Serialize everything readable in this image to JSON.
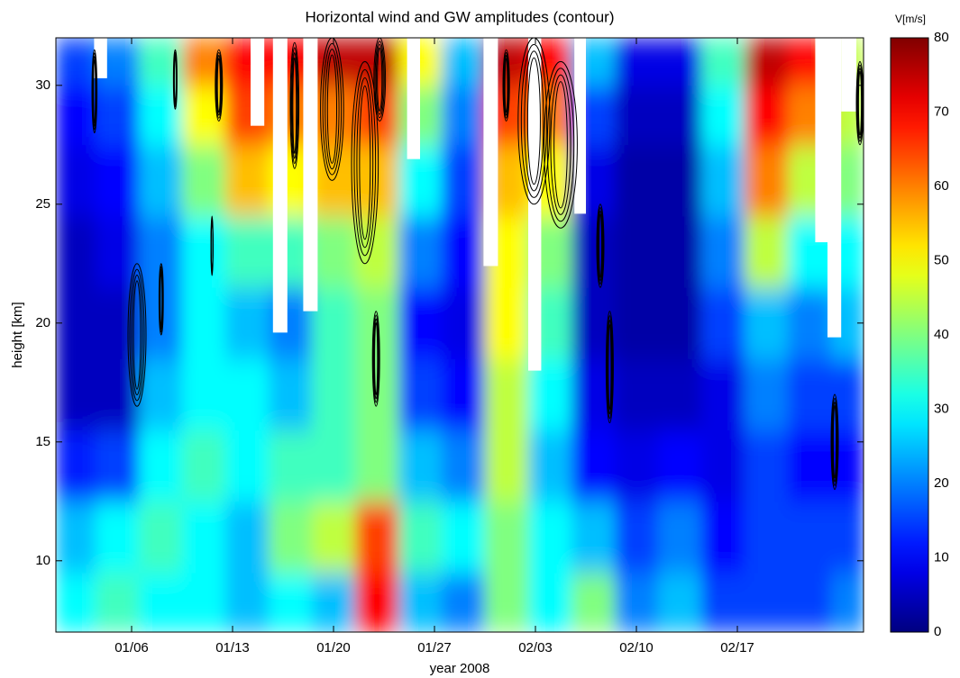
{
  "chart_data": {
    "type": "heatmap",
    "title": "Horizontal wind and GW amplitudes (contour)",
    "xlabel": "year 2008",
    "ylabel": "height [km]",
    "colorbar_label": "V[m/s]",
    "colormap": "jet",
    "x": [
      2,
      5,
      8,
      11,
      14,
      17,
      20,
      23,
      26,
      29,
      32,
      35,
      38,
      41,
      44,
      47,
      50,
      53,
      56
    ],
    "y": [
      8,
      11,
      14,
      17,
      20,
      23,
      26,
      29,
      31
    ],
    "z": [
      [
        30,
        35,
        30,
        30,
        25,
        30,
        25,
        70,
        25,
        20,
        40,
        30,
        40,
        20,
        25,
        15,
        15,
        15,
        20
      ],
      [
        25,
        30,
        35,
        30,
        25,
        40,
        45,
        65,
        35,
        30,
        40,
        30,
        25,
        15,
        20,
        10,
        15,
        15,
        15
      ],
      [
        12,
        15,
        30,
        35,
        30,
        35,
        35,
        40,
        25,
        20,
        45,
        25,
        10,
        8,
        10,
        8,
        15,
        10,
        10
      ],
      [
        5,
        5,
        25,
        30,
        30,
        25,
        35,
        40,
        15,
        10,
        45,
        30,
        8,
        5,
        5,
        8,
        20,
        15,
        15
      ],
      [
        5,
        5,
        20,
        30,
        25,
        20,
        35,
        40,
        10,
        8,
        50,
        35,
        5,
        3,
        3,
        15,
        25,
        20,
        25
      ],
      [
        5,
        8,
        20,
        30,
        35,
        35,
        40,
        45,
        20,
        10,
        50,
        40,
        5,
        3,
        3,
        20,
        45,
        30,
        30
      ],
      [
        8,
        10,
        25,
        40,
        55,
        50,
        55,
        55,
        30,
        15,
        55,
        50,
        8,
        3,
        3,
        25,
        60,
        45,
        40
      ],
      [
        10,
        15,
        30,
        50,
        65,
        60,
        60,
        65,
        40,
        20,
        65,
        60,
        15,
        5,
        5,
        30,
        70,
        60,
        45
      ],
      [
        15,
        20,
        35,
        60,
        70,
        70,
        75,
        75,
        50,
        25,
        75,
        70,
        25,
        8,
        8,
        35,
        75,
        70,
        45
      ]
    ],
    "xlim": [
      0.75,
      56.75
    ],
    "ylim": [
      7,
      32
    ],
    "xticks": [
      {
        "value": 6,
        "label": "01/06"
      },
      {
        "value": 13,
        "label": "01/13"
      },
      {
        "value": 20,
        "label": "01/20"
      },
      {
        "value": 27,
        "label": "01/27"
      },
      {
        "value": 34,
        "label": "02/03"
      },
      {
        "value": 41,
        "label": "02/10"
      },
      {
        "value": 48,
        "label": "02/17"
      }
    ],
    "yticks": [
      10,
      15,
      20,
      25,
      30
    ],
    "clim": [
      0,
      80
    ],
    "cticks": [
      0,
      10,
      20,
      30,
      40,
      50,
      60,
      70,
      80
    ],
    "no_data": [
      {
        "x0": 3.4,
        "x1": 4.3,
        "y0": 30.3
      },
      {
        "x0": 14.25,
        "x1": 15.2,
        "y0": 28.3
      },
      {
        "x0": 15.8,
        "x1": 16.8,
        "y0": 19.6
      },
      {
        "x0": 17.9,
        "x1": 18.9,
        "y0": 20.5
      },
      {
        "x0": 25.1,
        "x1": 26.0,
        "y0": 26.9
      },
      {
        "x0": 30.4,
        "x1": 31.4,
        "y0": 22.4
      },
      {
        "x0": 33.5,
        "x1": 34.4,
        "y0": 18
      },
      {
        "x0": 36.7,
        "x1": 37.5,
        "y0": 24.6
      },
      {
        "x0": 53.4,
        "x1": 54.25,
        "y0": 23.4
      },
      {
        "x0": 54.25,
        "x1": 55.2,
        "y0": 19.4
      },
      {
        "x0": 55.2,
        "x1": 56.25,
        "y0": 28.9
      }
    ],
    "contours": [
      {
        "x0": 3.25,
        "x1": 3.6,
        "y0": 28,
        "y1": 31.5
      },
      {
        "x0": 5.75,
        "x1": 7.0,
        "y0": 16.5,
        "y1": 22.5
      },
      {
        "x0": 7.9,
        "x1": 8.2,
        "y0": 19.5,
        "y1": 22.5
      },
      {
        "x0": 8.9,
        "x1": 9.15,
        "y0": 29,
        "y1": 31.5
      },
      {
        "x0": 11.5,
        "x1": 11.65,
        "y0": 22,
        "y1": 24.5
      },
      {
        "x0": 11.8,
        "x1": 12.3,
        "y0": 28.5,
        "y1": 31.5
      },
      {
        "x0": 17.0,
        "x1": 17.6,
        "y0": 26.5,
        "y1": 31.8
      },
      {
        "x0": 19.1,
        "x1": 20.7,
        "y0": 26,
        "y1": 32
      },
      {
        "x0": 21.25,
        "x1": 23.1,
        "y0": 22.5,
        "y1": 31
      },
      {
        "x0": 22.8,
        "x1": 23.6,
        "y0": 28.5,
        "y1": 32
      },
      {
        "x0": 22.7,
        "x1": 23.2,
        "y0": 16.5,
        "y1": 20.5
      },
      {
        "x0": 31.75,
        "x1": 32.2,
        "y0": 28.5,
        "y1": 31.5
      },
      {
        "x0": 32.8,
        "x1": 35.0,
        "y0": 25,
        "y1": 32
      },
      {
        "x0": 34.6,
        "x1": 36.9,
        "y0": 24,
        "y1": 31
      },
      {
        "x0": 38.25,
        "x1": 38.75,
        "y0": 21.5,
        "y1": 25
      },
      {
        "x0": 38.9,
        "x1": 39.4,
        "y0": 15.8,
        "y1": 20.5
      },
      {
        "x0": 54.5,
        "x1": 55.0,
        "y0": 13,
        "y1": 17
      },
      {
        "x0": 56.25,
        "x1": 56.75,
        "y0": 27.5,
        "y1": 31
      }
    ]
  }
}
